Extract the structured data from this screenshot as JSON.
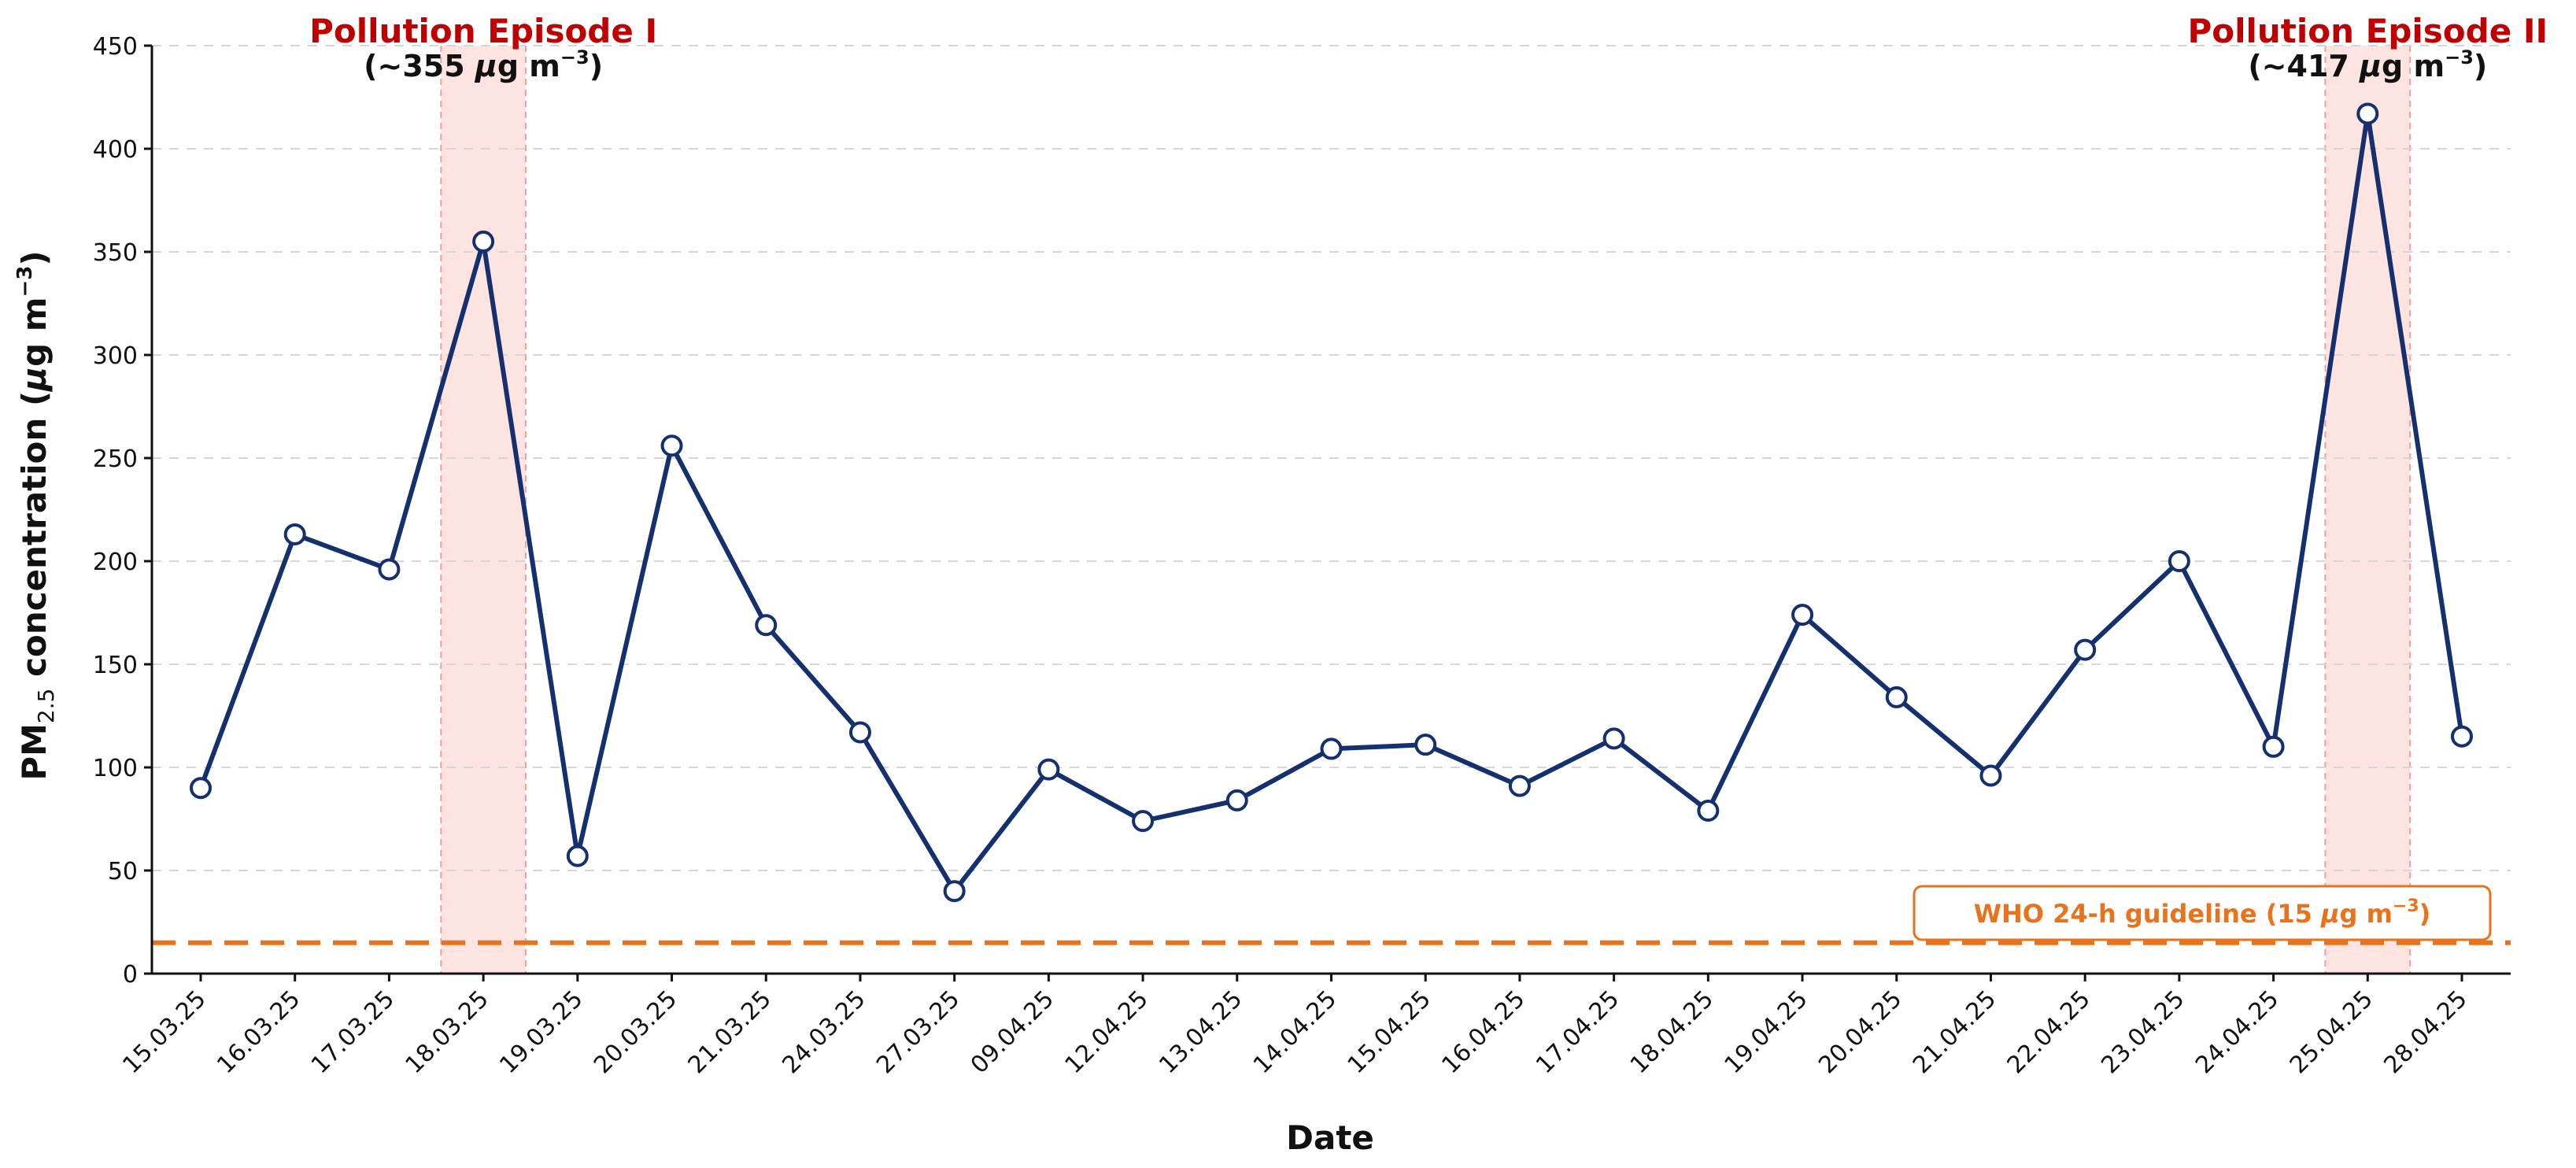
{
  "chart_data": {
    "type": "line",
    "title": "",
    "xlabel": "Date",
    "ylabel_main": "PM",
    "ylabel_sub": "2.5",
    "ylabel_rest": " concentration (",
    "ylabel_mu": "μ",
    "ylabel_unit": "g m",
    "ylabel_sup": "−3",
    "ylabel_close": ")",
    "ylim": [
      0,
      450
    ],
    "yticks": [
      0,
      50,
      100,
      150,
      200,
      250,
      300,
      350,
      400,
      450
    ],
    "grid": "horizontal dashed",
    "categories": [
      "15.03.25",
      "16.03.25",
      "17.03.25",
      "18.03.25",
      "19.03.25",
      "20.03.25",
      "21.03.25",
      "24.03.25",
      "27.03.25",
      "09.04.25",
      "12.04.25",
      "13.04.25",
      "14.04.25",
      "15.04.25",
      "16.04.25",
      "17.04.25",
      "18.04.25",
      "19.04.25",
      "20.04.25",
      "21.04.25",
      "22.04.25",
      "23.04.25",
      "24.04.25",
      "25.04.25",
      "28.04.25"
    ],
    "series": [
      {
        "values": [
          90,
          213,
          196,
          355,
          57,
          256,
          169,
          117,
          40,
          99,
          74,
          84,
          109,
          111,
          91,
          114,
          79,
          174,
          134,
          96,
          157,
          200,
          110,
          417,
          115
        ]
      }
    ],
    "guideline": {
      "value": 15,
      "label_prefix": "WHO 24-h guideline (15 ",
      "label_mu": "μ",
      "label_unit": "g m",
      "label_sup": "−3",
      "label_close": ")"
    },
    "episodes": [
      {
        "category_index": 3,
        "title": "Pollution Episode I",
        "value_prefix": "(~355 ",
        "value_mu": "μ",
        "value_unit": "g m",
        "value_sup": "−3",
        "value_close": ")"
      },
      {
        "category_index": 23,
        "title": "Pollution Episode II",
        "value_prefix": "(~417 ",
        "value_mu": "μ",
        "value_unit": "g m",
        "value_sup": "−3",
        "value_close": ")"
      }
    ],
    "colors": {
      "line": "#14306e",
      "marker_fill": "#ffffff",
      "guideline": "#e8731c",
      "episode_band": "#fde4e1",
      "episode_edge": "#f2a19a",
      "episode_title": "#c00000",
      "grid": "#d6d6d6",
      "axis": "#111111"
    }
  }
}
